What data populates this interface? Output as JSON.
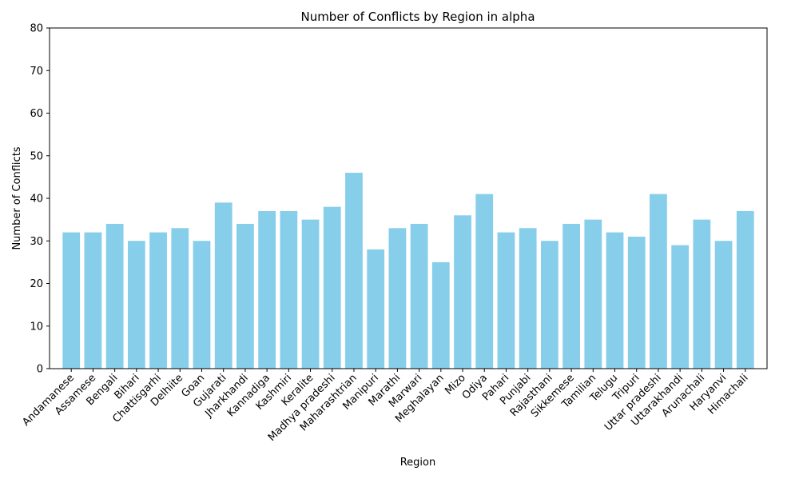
{
  "chart_data": {
    "type": "bar",
    "title": "Number of Conflicts by Region in alpha",
    "xlabel": "Region",
    "ylabel": "Number of Conflicts",
    "ylim": [
      0,
      80
    ],
    "yticks": [
      0,
      10,
      20,
      30,
      40,
      50,
      60,
      70,
      80
    ],
    "grid": false,
    "legend": "none",
    "bar_color": "#87CEEB",
    "categories": [
      "Andamanese",
      "Assamese",
      "Bengali",
      "Bihari",
      "Chattisgarhi",
      "Delhiite",
      "Goan",
      "Gujarati",
      "Jharkhandi",
      "Kannadiga",
      "Kashmiri",
      "Keralite",
      "Madhya pradeshi",
      "Maharashtrian",
      "Manipuri",
      "Marathi",
      "Marwari",
      "Meghalayan",
      "Mizo",
      "Odiya",
      "Pahari",
      "Punjabi",
      "Rajasthani",
      "Sikkemese",
      "Tamilian",
      "Telugu",
      "Tripuri",
      "Uttar pradeshi",
      "Uttarakhandi",
      "Arunachali",
      "Haryanvi",
      "Himachali"
    ],
    "values": [
      32,
      32,
      34,
      30,
      32,
      33,
      30,
      39,
      34,
      37,
      37,
      35,
      38,
      46,
      28,
      33,
      34,
      25,
      36,
      41,
      32,
      33,
      30,
      34,
      35,
      32,
      31,
      41,
      29,
      35,
      30,
      37
    ]
  }
}
